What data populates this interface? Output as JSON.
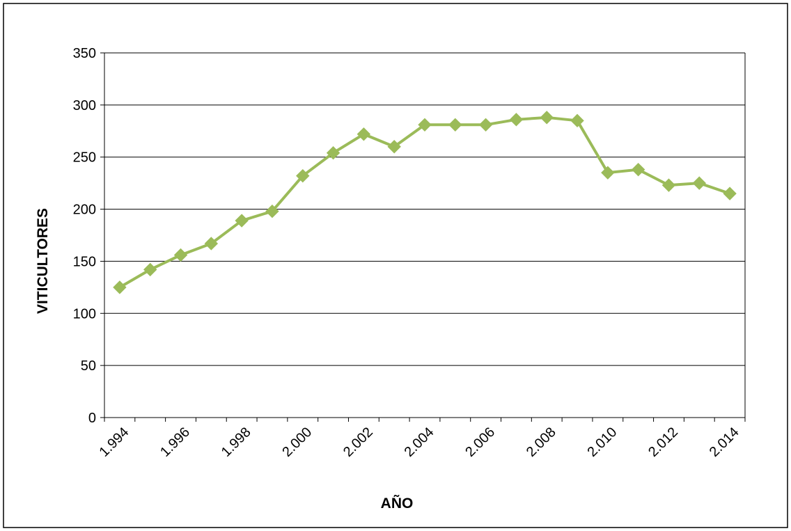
{
  "chart_data": {
    "type": "line",
    "title": "",
    "xlabel": "AÑO",
    "ylabel": "VITICULTORES",
    "ylim": [
      0,
      350
    ],
    "yticks": [
      "0",
      "50",
      "100",
      "150",
      "200",
      "250",
      "300",
      "350"
    ],
    "xtick_labels": [
      "1.994",
      "1.996",
      "1.998",
      "2.000",
      "2.002",
      "2.004",
      "2.006",
      "2.008",
      "2.010",
      "2.012",
      "2.014"
    ],
    "x": [
      "1.994",
      "1.995",
      "1.996",
      "1.997",
      "1.998",
      "1.999",
      "2.000",
      "2.001",
      "2.002",
      "2.003",
      "2.004",
      "2.005",
      "2.006",
      "2.007",
      "2.008",
      "2.009",
      "2.010",
      "2.011",
      "2.012",
      "2.013",
      "2.014"
    ],
    "series": [
      {
        "values": [
          125,
          142,
          156,
          167,
          189,
          198,
          232,
          254,
          272,
          260,
          281,
          281,
          281,
          286,
          288,
          285,
          235,
          238,
          223,
          225,
          215
        ],
        "color": "#9bbb59",
        "marker": "diamond"
      }
    ],
    "grid": true,
    "legend": "none"
  }
}
